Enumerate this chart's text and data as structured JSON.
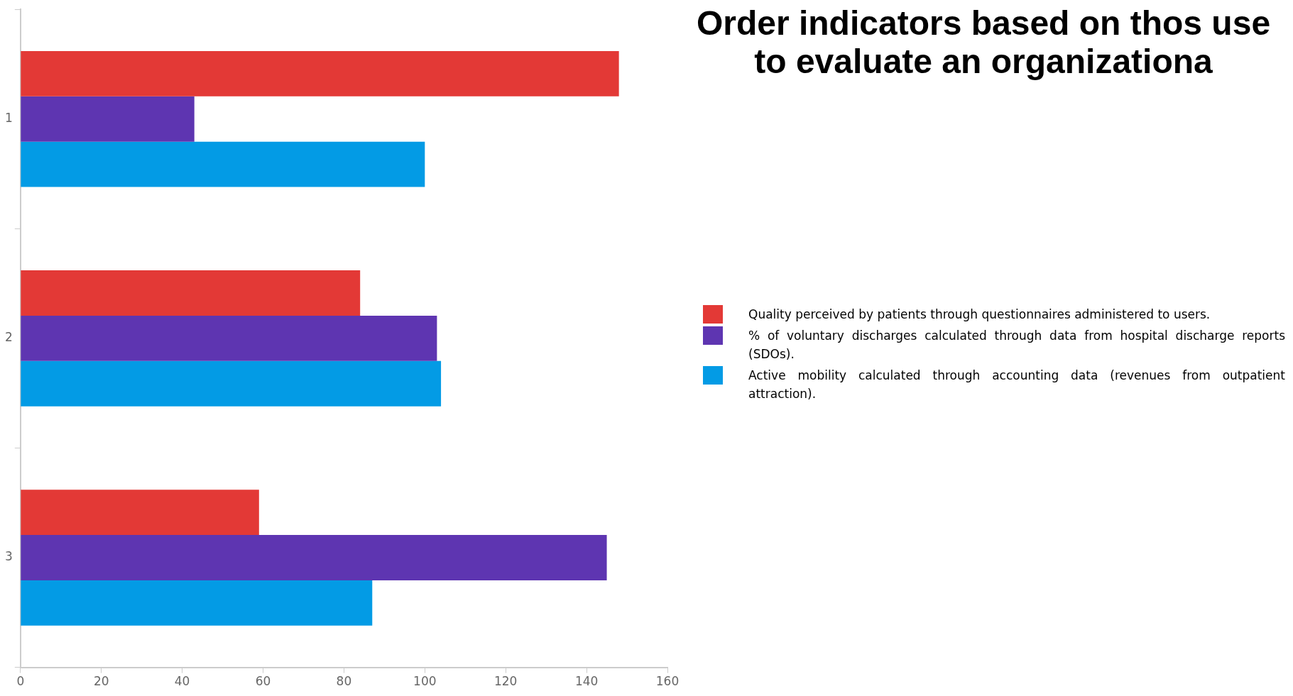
{
  "chart_data": {
    "type": "bar",
    "orientation": "horizontal",
    "title": "Order indicators based on thos use to evaluate an organizationa",
    "categories": [
      "1",
      "2",
      "3"
    ],
    "series": [
      {
        "name": "Quality perceived by patients through questionnaires administered to users.",
        "color": "#e33936",
        "values": [
          148,
          84,
          59
        ]
      },
      {
        "name": "% of voluntary discharges calculated through data from hospital discharge reports (SDOs).",
        "color": "#5e35b1",
        "values": [
          43,
          103,
          145
        ]
      },
      {
        "name": "Active mobility calculated through accounting data (revenues from outpatient attraction).",
        "color": "#039be5",
        "values": [
          100,
          104,
          87
        ]
      }
    ],
    "xlim": [
      0,
      160
    ],
    "xticks": [
      0,
      20,
      40,
      60,
      80,
      100,
      120,
      140,
      160
    ],
    "grid": false,
    "legend": "right"
  }
}
